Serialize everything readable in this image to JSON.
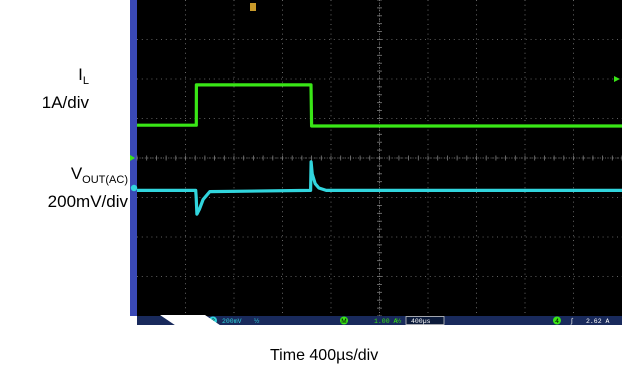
{
  "chart_data": {
    "type": "line",
    "xlabel": "Time  400µs/div",
    "x_unit": "µs",
    "x_per_div": 400,
    "divisions_x": 10,
    "divisions_y": 8,
    "series": [
      {
        "name_main": "I",
        "name_sub": "L",
        "scale": "1A/div",
        "color": "#39e616",
        "x": [
          0,
          484,
          489,
          490,
          1435,
          1440,
          4000
        ],
        "y": [
          0.83,
          0.83,
          0.83,
          1.85,
          1.85,
          0.81,
          0.81
        ],
        "y_unit": "div"
      },
      {
        "name_main": "V",
        "name_sub": "OUT(AC)",
        "scale": "200mV/div",
        "color": "#31d5dd",
        "x": [
          0,
          484,
          488,
          494,
          515,
          545,
          600,
          1420,
          1432,
          1436,
          1445,
          1470,
          1500,
          1560,
          4000
        ],
        "y": [
          -0.82,
          -0.82,
          -1.0,
          -1.42,
          -1.3,
          -1.05,
          -0.85,
          -0.82,
          -0.82,
          -0.1,
          -0.4,
          -0.65,
          -0.76,
          -0.82,
          -0.82
        ],
        "y_unit": "div"
      }
    ],
    "statusbar": {
      "ch2_num": "2",
      "ch2_scale": "200mV",
      "ch2_bw": "½",
      "math_num": "M",
      "math_scale": "1.00 A",
      "math_bw": "½",
      "timebase": "400µs",
      "trig_num": "4",
      "trig_slope": "∫",
      "trig_level": "2.62 A"
    },
    "colors": {
      "screen_bg": "#000000",
      "frame": "#3a49b6",
      "grid": "#7f7f7f",
      "status_bg": "#192a5c"
    }
  }
}
